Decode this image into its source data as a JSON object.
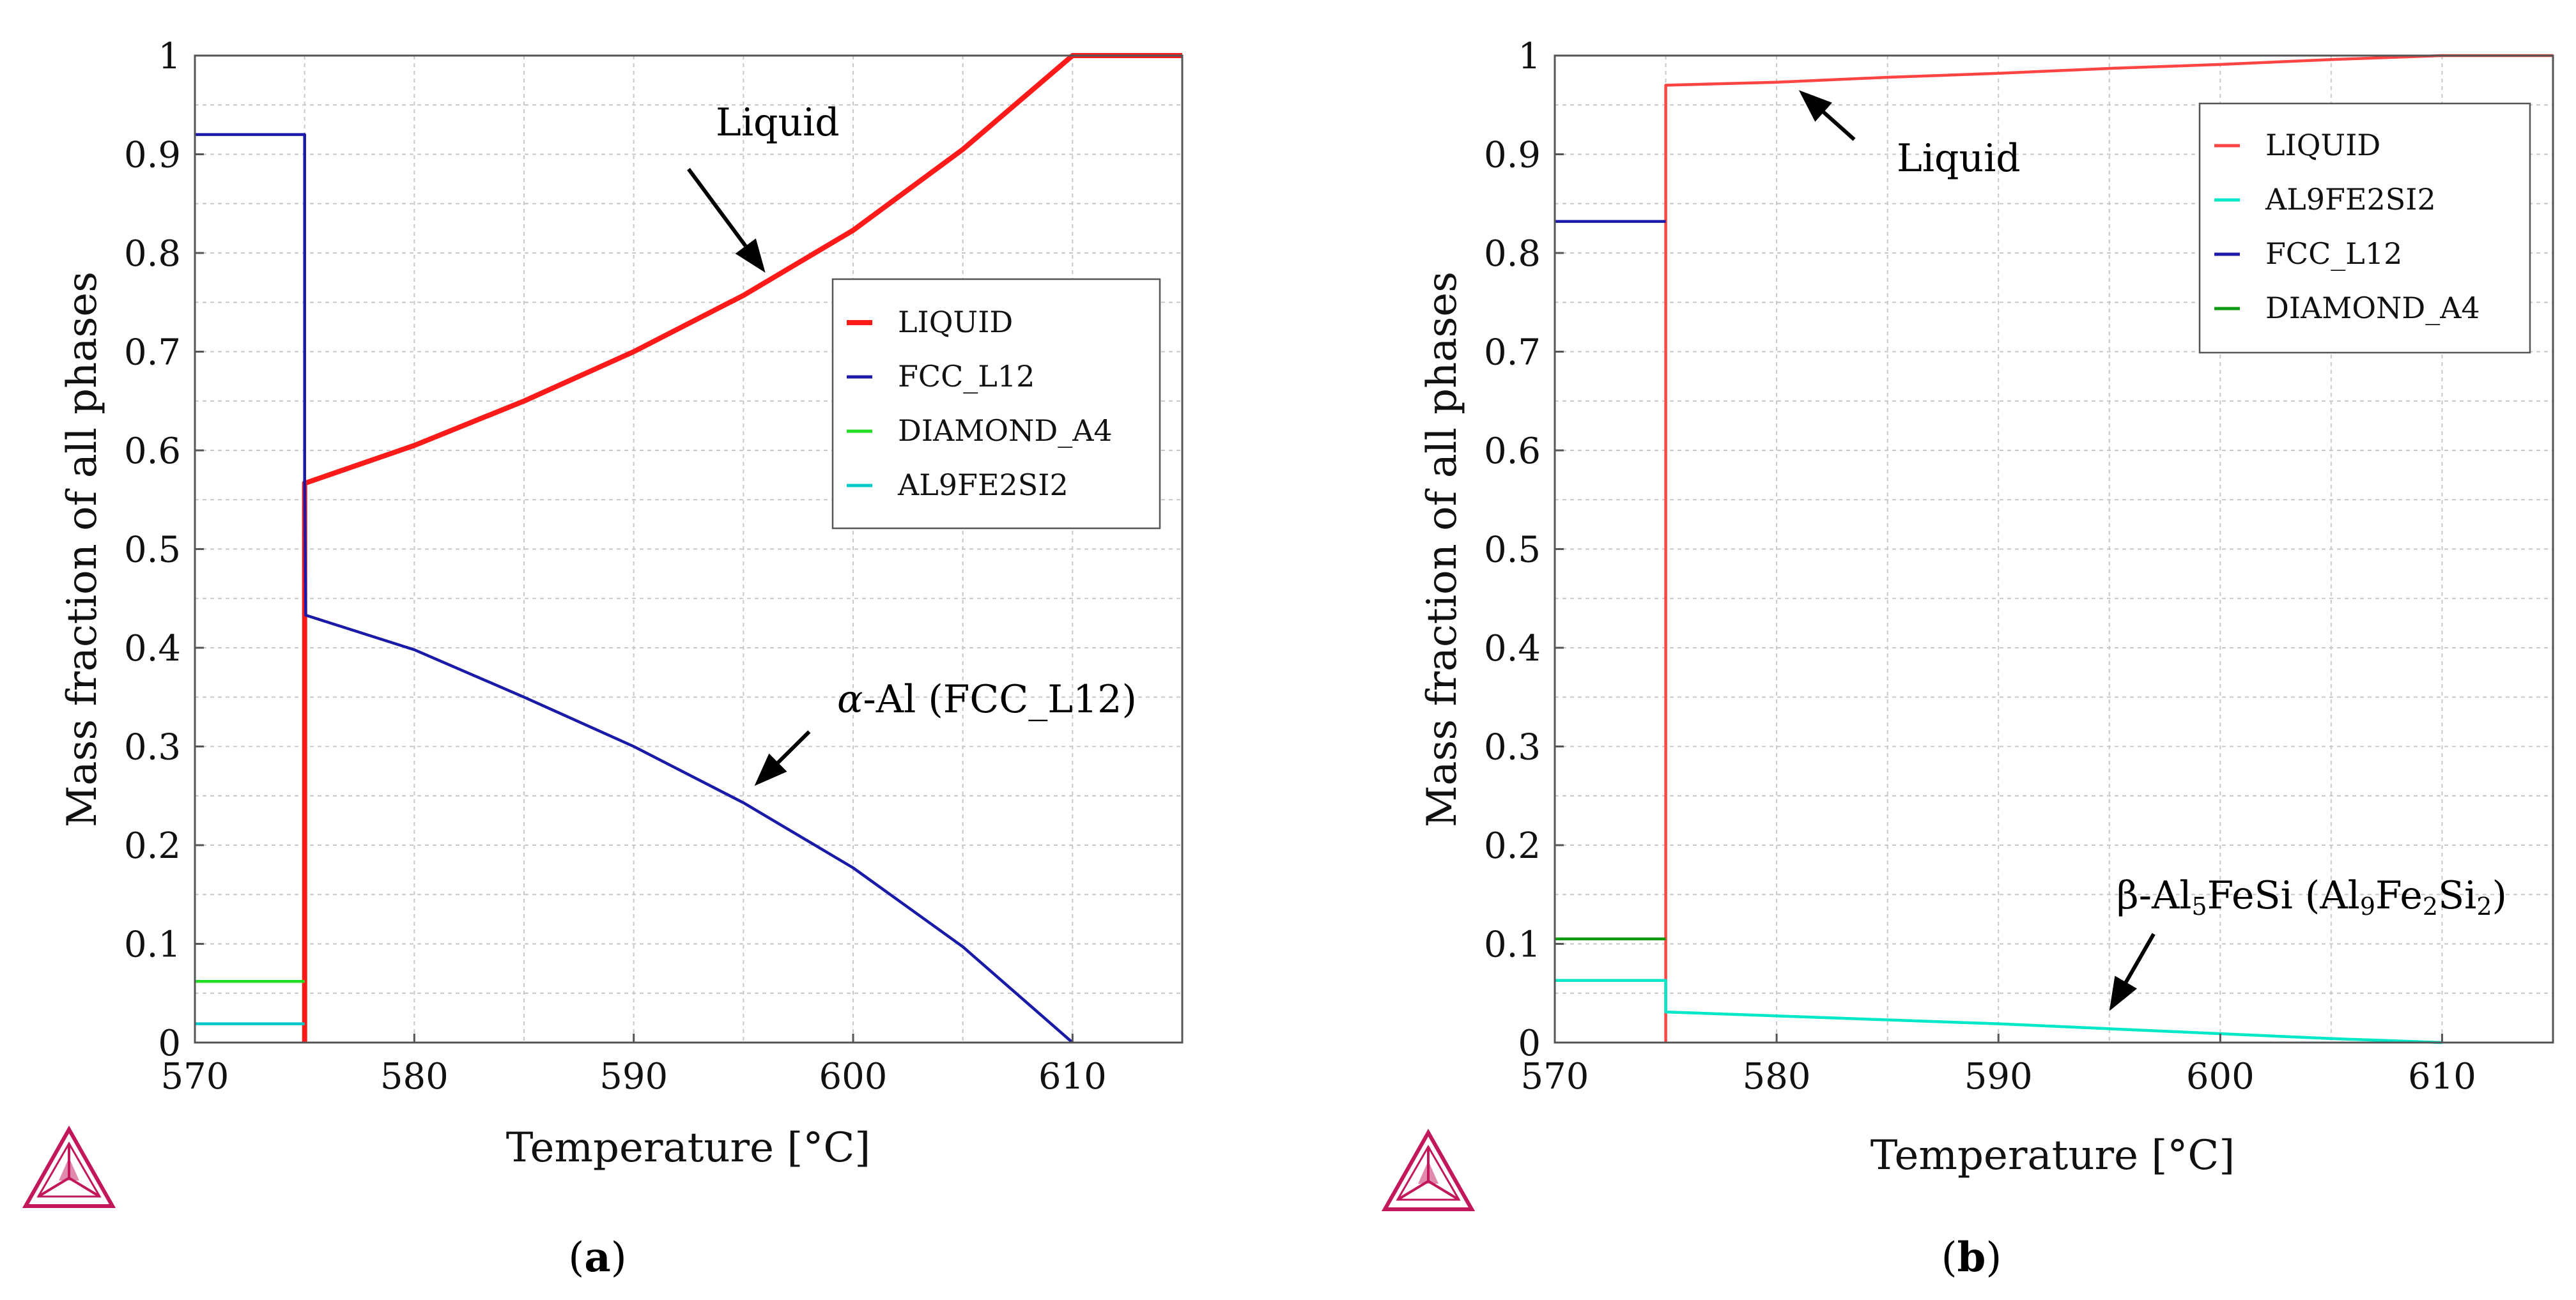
{
  "figure": {
    "panel_labels": [
      "(",
      "a",
      ")",
      "(",
      "b",
      ")"
    ]
  },
  "chart_data": [
    {
      "type": "line",
      "panel": "(a)",
      "xlabel": "Temperature [°C]",
      "ylabel": "Mass fraction of all phases",
      "xlim": [
        570,
        615
      ],
      "ylim": [
        0,
        1
      ],
      "xticks": [
        "570",
        "580",
        "590",
        "600",
        "610"
      ],
      "yticks": [
        "0",
        "0.1",
        "0.2",
        "0.3",
        "0.4",
        "0.5",
        "0.6",
        "0.7",
        "0.8",
        "0.9",
        "1"
      ],
      "grid": true,
      "legend_position": "right-middle",
      "series": [
        {
          "name": "LIQUID",
          "color": "#ff1a1a",
          "thick": true,
          "x": [
            575,
            575,
            575.05,
            580,
            585,
            590,
            595,
            600,
            605,
            610,
            615
          ],
          "y": [
            0,
            0.567,
            0.567,
            0.605,
            0.65,
            0.7,
            0.757,
            0.823,
            0.905,
            1.0,
            1.0
          ]
        },
        {
          "name": "FCC_L12",
          "color": "#1a1aa8",
          "thick": false,
          "x": [
            570,
            575,
            575,
            575.05,
            580,
            585,
            590,
            595,
            600,
            605,
            610
          ],
          "y": [
            0.92,
            0.92,
            0.567,
            0.433,
            0.398,
            0.35,
            0.3,
            0.243,
            0.177,
            0.097,
            0
          ]
        },
        {
          "name": "DIAMOND_A4",
          "color": "#22dd22",
          "thick": false,
          "x": [
            570,
            575
          ],
          "y": [
            0.062,
            0.062
          ]
        },
        {
          "name": "AL9FE2SI2",
          "color": "#00c8c8",
          "thick": false,
          "x": [
            570,
            575
          ],
          "y": [
            0.019,
            0.019
          ]
        }
      ],
      "annotations": [
        {
          "text_parts": [
            "Liquid"
          ],
          "x": 595,
          "y": 0.93,
          "arrow_to": [
            596,
            0.78
          ],
          "arrow_from": [
            592.5,
            0.885
          ]
        },
        {
          "text_parts": [
            "α",
            "-Al (FCC_L12)"
          ],
          "x": 599,
          "y": 0.33,
          "arrow_to": [
            595.5,
            0.26
          ],
          "arrow_from": [
            598,
            0.315
          ]
        }
      ]
    },
    {
      "type": "line",
      "panel": "(b)",
      "xlabel": "Temperature [°C]",
      "ylabel": "Mass fraction of all phases",
      "xlim": [
        570,
        615
      ],
      "ylim": [
        0,
        1
      ],
      "xticks": [
        "570",
        "580",
        "590",
        "600",
        "610"
      ],
      "yticks": [
        "0",
        "0.1",
        "0.2",
        "0.3",
        "0.4",
        "0.5",
        "0.6",
        "0.7",
        "0.8",
        "0.9",
        "1"
      ],
      "grid": true,
      "legend_position": "top-right",
      "series": [
        {
          "name": "LIQUID",
          "color": "#ff4444",
          "thick": false,
          "x": [
            575,
            575,
            580,
            585,
            590,
            595,
            600,
            605,
            610,
            615
          ],
          "y": [
            0,
            0.97,
            0.973,
            0.978,
            0.982,
            0.987,
            0.991,
            0.996,
            1.0,
            1.0
          ]
        },
        {
          "name": "AL9FE2SI2",
          "color": "#00e8c8",
          "thick": false,
          "x": [
            570,
            575,
            575,
            580,
            585,
            590,
            595,
            600,
            605,
            610
          ],
          "y": [
            0.063,
            0.063,
            0.031,
            0.027,
            0.023,
            0.019,
            0.014,
            0.009,
            0.004,
            0
          ]
        },
        {
          "name": "FCC_L12",
          "color": "#1a1aa8",
          "thick": false,
          "x": [
            570,
            575
          ],
          "y": [
            0.832,
            0.832
          ]
        },
        {
          "name": "DIAMOND_A4",
          "color": "#119911",
          "thick": false,
          "x": [
            570,
            575
          ],
          "y": [
            0.105,
            0.105
          ]
        }
      ],
      "annotations": [
        {
          "text_parts": [
            "Liquid"
          ],
          "x": 584,
          "y": 0.905,
          "arrow_to": [
            581,
            0.965
          ],
          "arrow_from": [
            583.5,
            0.915
          ]
        },
        {
          "text_parts": [
            "β-Al",
            "5",
            "FeSi (Al",
            "9",
            "Fe",
            "2",
            "Si",
            "2",
            ")"
          ],
          "x": 592,
          "y": 0.13,
          "arrow_to": [
            595,
            0.032
          ],
          "arrow_from": [
            597,
            0.11
          ]
        }
      ]
    }
  ]
}
